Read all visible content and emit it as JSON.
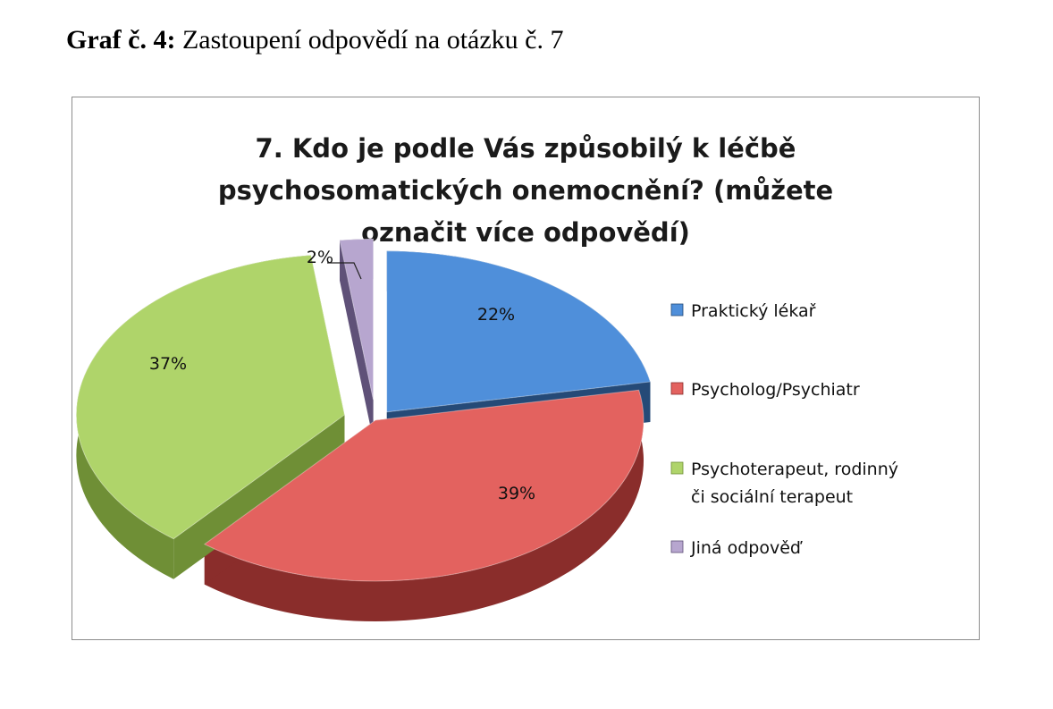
{
  "caption": {
    "label": "Graf č. 4:",
    "text": "Zastoupení odpovědí na otázku č. 7"
  },
  "chart_data": {
    "type": "pie",
    "title_lines": [
      "7. Kdo je podle Vás způsobilý k léčbě",
      "psychosomatických onemocnění? (můžete",
      "označit více odpovědí)"
    ],
    "slices": [
      {
        "label": "Praktický lékař",
        "legend_lines": [
          "Praktický lékař"
        ],
        "value": 22,
        "display": "22%",
        "color": "#4f8fda",
        "side_color": "#254a77"
      },
      {
        "label": "Psycholog/Psychiatr",
        "legend_lines": [
          "Psycholog/Psychiatr"
        ],
        "value": 39,
        "display": "39%",
        "color": "#e3625f",
        "side_color": "#8a2d2b"
      },
      {
        "label": "Psychoterapeut, rodinný či sociální terapeut",
        "legend_lines": [
          "Psychoterapeut, rodinný",
          "či sociální terapeut"
        ],
        "value": 37,
        "display": "37%",
        "color": "#afd46a",
        "side_color": "#6f8f36"
      },
      {
        "label": "Jiná odpověď",
        "legend_lines": [
          "Jiná odpověď"
        ],
        "value": 2,
        "display": "2%",
        "color": "#b7a6cf",
        "side_color": "#5f5178"
      }
    ],
    "legend_position": "right",
    "exploded": true,
    "three_d": true
  }
}
